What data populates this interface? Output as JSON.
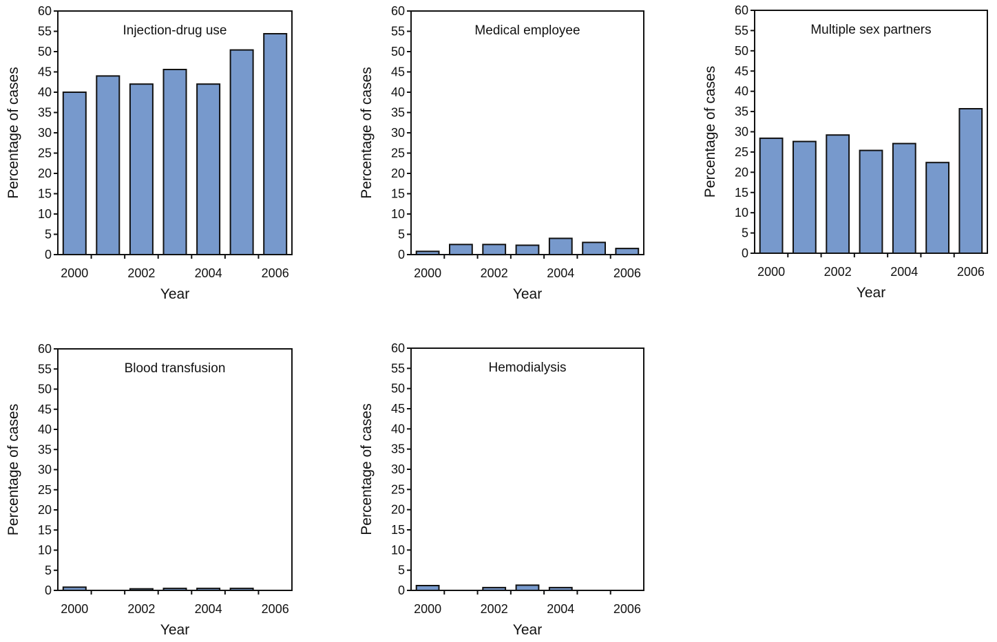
{
  "style": {
    "bar_fill": "#7799cc",
    "bar_stroke": "#111111",
    "axis_color": "#111111"
  },
  "chart_data": [
    {
      "type": "bar",
      "title": "Injection-drug use",
      "xlabel": "Year",
      "ylabel": "Percentage of cases",
      "categories": [
        "2000",
        "2001",
        "2002",
        "2003",
        "2004",
        "2005",
        "2006"
      ],
      "x_tick_labels": [
        "2000",
        "2002",
        "2004",
        "2006"
      ],
      "values": [
        40,
        44,
        42,
        45.6,
        42,
        50.4,
        54.4
      ],
      "ylim": [
        0,
        60
      ],
      "yticks": [
        0,
        5,
        10,
        15,
        20,
        25,
        30,
        35,
        40,
        45,
        50,
        55,
        60
      ],
      "grid": false,
      "legend": "none"
    },
    {
      "type": "bar",
      "title": "Medical employee",
      "xlabel": "Year",
      "ylabel": "Percentage of cases",
      "categories": [
        "2000",
        "2001",
        "2002",
        "2003",
        "2004",
        "2005",
        "2006"
      ],
      "x_tick_labels": [
        "2000",
        "2002",
        "2004",
        "2006"
      ],
      "values": [
        0.8,
        2.5,
        2.5,
        2.3,
        4,
        3,
        1.5
      ],
      "ylim": [
        0,
        60
      ],
      "yticks": [
        0,
        5,
        10,
        15,
        20,
        25,
        30,
        35,
        40,
        45,
        50,
        55,
        60
      ],
      "grid": false,
      "legend": "none"
    },
    {
      "type": "bar",
      "title": "Multiple sex partners",
      "xlabel": "Year",
      "ylabel": "Percentage of cases",
      "categories": [
        "2000",
        "2001",
        "2002",
        "2003",
        "2004",
        "2005",
        "2006"
      ],
      "x_tick_labels": [
        "2000",
        "2002",
        "2004",
        "2006"
      ],
      "values": [
        28.4,
        27.6,
        29.2,
        25.4,
        27.1,
        22.4,
        35.7
      ],
      "ylim": [
        0,
        60
      ],
      "yticks": [
        0,
        5,
        10,
        15,
        20,
        25,
        30,
        35,
        40,
        45,
        50,
        55,
        60
      ],
      "grid": false,
      "legend": "none"
    },
    {
      "type": "bar",
      "title": "Blood transfusion",
      "xlabel": "Year",
      "ylabel": "Percentage of cases",
      "categories": [
        "2000",
        "2001",
        "2002",
        "2003",
        "2004",
        "2005",
        "2006"
      ],
      "x_tick_labels": [
        "2000",
        "2002",
        "2004",
        "2006"
      ],
      "values": [
        0.8,
        0,
        0.4,
        0.5,
        0.5,
        0.5,
        0
      ],
      "ylim": [
        0,
        60
      ],
      "yticks": [
        0,
        5,
        10,
        15,
        20,
        25,
        30,
        35,
        40,
        45,
        50,
        55,
        60
      ],
      "grid": false,
      "legend": "none"
    },
    {
      "type": "bar",
      "title": "Hemodialysis",
      "xlabel": "Year",
      "ylabel": "Percentage of cases",
      "categories": [
        "2000",
        "2001",
        "2002",
        "2003",
        "2004",
        "2005",
        "2006"
      ],
      "x_tick_labels": [
        "2000",
        "2002",
        "2004",
        "2006"
      ],
      "values": [
        1.2,
        0,
        0.7,
        1.3,
        0.7,
        0,
        0
      ],
      "ylim": [
        0,
        60
      ],
      "yticks": [
        0,
        5,
        10,
        15,
        20,
        25,
        30,
        35,
        40,
        45,
        50,
        55,
        60
      ],
      "grid": false,
      "legend": "none"
    }
  ]
}
